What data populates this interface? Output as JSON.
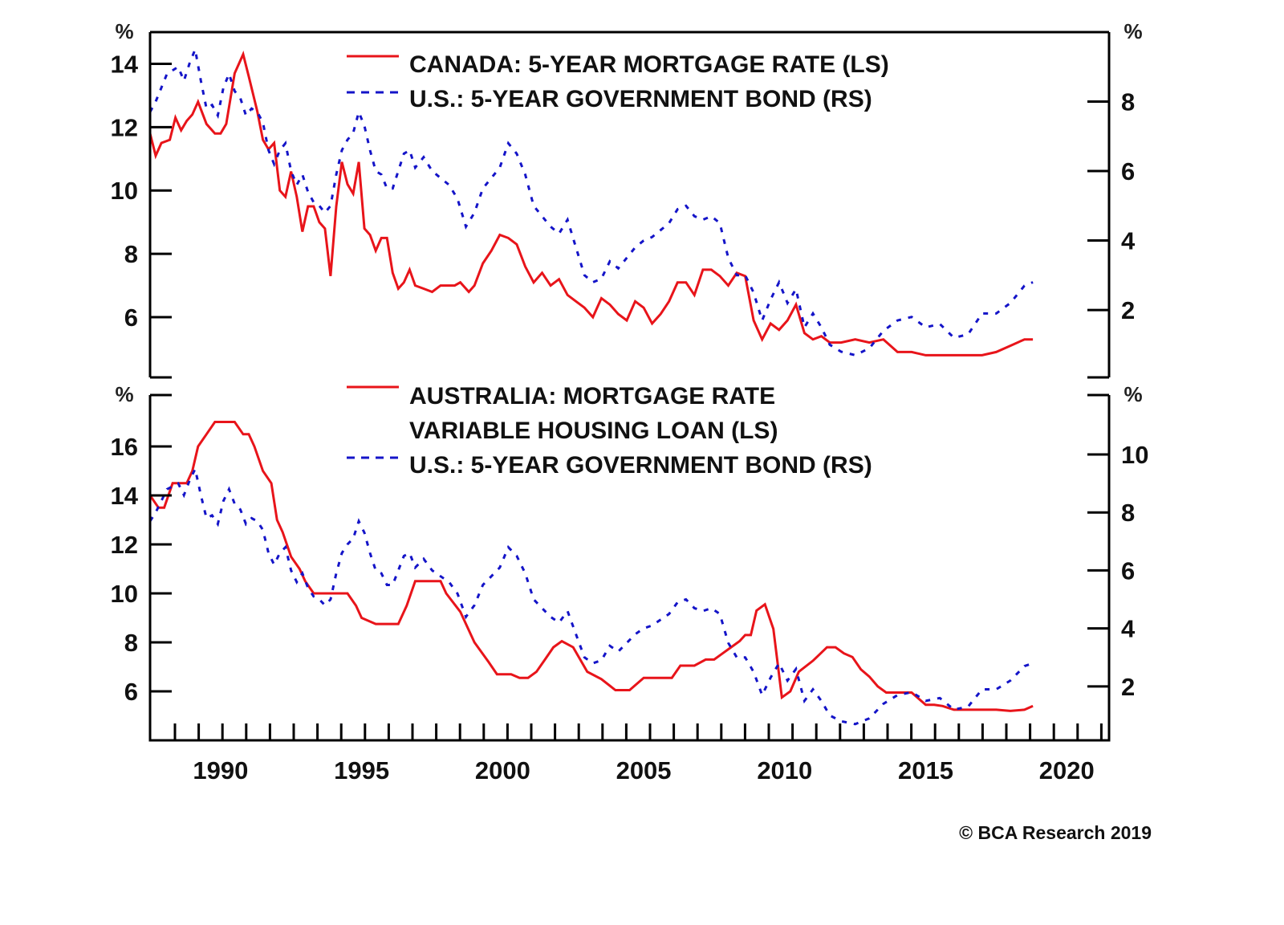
{
  "footer": {
    "credit": "© BCA Research 2019"
  },
  "colors": {
    "red_series": "#e8141a",
    "blue_series": "#1414c8",
    "axis": "#000000"
  },
  "chart_data": [
    {
      "type": "line",
      "panel": "top",
      "title": "",
      "unit_left": "%",
      "unit_right": "%",
      "xlim": [
        1987.5,
        2021.5
      ],
      "ylim_left": [
        4.1,
        15.0
      ],
      "ylim_right": [
        0.06,
        10.0
      ],
      "yticks_left": [
        6,
        8,
        10,
        12,
        14
      ],
      "yticks_right": [
        2,
        4,
        6,
        8
      ],
      "legend_placement": "top-center",
      "series": [
        {
          "name": "CANADA: 5-YEAR MORTGAGE RATE (LS)",
          "axis": "left",
          "style": "solid",
          "color": "#e8141a",
          "x": [
            1987.5,
            1987.7,
            1987.9,
            1988.2,
            1988.4,
            1988.6,
            1988.8,
            1989.0,
            1989.2,
            1989.5,
            1989.8,
            1990.0,
            1990.2,
            1990.5,
            1990.8,
            1991.0,
            1991.3,
            1991.5,
            1991.7,
            1991.9,
            1992.1,
            1992.3,
            1992.5,
            1992.7,
            1992.9,
            1993.1,
            1993.3,
            1993.5,
            1993.7,
            1993.9,
            1994.1,
            1994.3,
            1994.5,
            1994.7,
            1994.9,
            1995.1,
            1995.3,
            1995.5,
            1995.7,
            1995.9,
            1996.1,
            1996.3,
            1996.5,
            1996.7,
            1996.9,
            1997.2,
            1997.5,
            1997.8,
            1998.0,
            1998.3,
            1998.5,
            1998.8,
            1999.0,
            1999.3,
            1999.6,
            1999.9,
            2000.2,
            2000.5,
            2000.8,
            2001.1,
            2001.4,
            2001.7,
            2002.0,
            2002.3,
            2002.6,
            2002.9,
            2003.2,
            2003.5,
            2003.8,
            2004.1,
            2004.4,
            2004.7,
            2005.0,
            2005.3,
            2005.6,
            2005.9,
            2006.2,
            2006.5,
            2006.8,
            2007.1,
            2007.4,
            2007.7,
            2008.0,
            2008.3,
            2008.6,
            2008.9,
            2009.2,
            2009.5,
            2009.8,
            2010.1,
            2010.4,
            2010.7,
            2011.0,
            2011.3,
            2011.6,
            2012.0,
            2012.5,
            2013.0,
            2013.5,
            2014.0,
            2014.5,
            2015.0,
            2015.5,
            2016.0,
            2016.5,
            2017.0,
            2017.5,
            2018.0,
            2018.5,
            2018.8
          ],
          "values": [
            11.8,
            11.1,
            11.5,
            11.6,
            12.3,
            11.9,
            12.2,
            12.4,
            12.8,
            12.1,
            11.8,
            11.8,
            12.1,
            13.7,
            14.3,
            13.6,
            12.5,
            11.6,
            11.3,
            11.5,
            10.0,
            9.8,
            10.6,
            9.8,
            8.7,
            9.5,
            9.5,
            9.0,
            8.8,
            7.3,
            9.5,
            10.9,
            10.2,
            9.9,
            10.9,
            8.8,
            8.6,
            8.1,
            8.5,
            8.5,
            7.4,
            6.9,
            7.1,
            7.5,
            7.0,
            6.9,
            6.8,
            7.0,
            7.0,
            7.0,
            7.1,
            6.8,
            7.0,
            7.7,
            8.1,
            8.6,
            8.5,
            8.3,
            7.6,
            7.1,
            7.4,
            7.0,
            7.2,
            6.7,
            6.5,
            6.3,
            6.0,
            6.6,
            6.4,
            6.1,
            5.9,
            6.5,
            6.3,
            5.8,
            6.1,
            6.5,
            7.1,
            7.1,
            6.7,
            7.5,
            7.5,
            7.3,
            7.0,
            7.4,
            7.3,
            5.9,
            5.3,
            5.8,
            5.6,
            5.9,
            6.4,
            5.5,
            5.3,
            5.4,
            5.2,
            5.2,
            5.3,
            5.2,
            5.3,
            4.9,
            4.9,
            4.8,
            4.8,
            4.8,
            4.8,
            4.8,
            4.9,
            5.1,
            5.3,
            5.3
          ]
        },
        {
          "name": "U.S.: 5-YEAR GOVERNMENT BOND (RS)",
          "axis": "right",
          "style": "dashed",
          "color": "#1414c8",
          "x": [
            1987.5,
            1987.7,
            1987.9,
            1988.1,
            1988.3,
            1988.5,
            1988.7,
            1988.9,
            1989.1,
            1989.3,
            1989.5,
            1989.7,
            1989.9,
            1990.1,
            1990.3,
            1990.5,
            1990.7,
            1990.9,
            1991.1,
            1991.3,
            1991.5,
            1991.7,
            1991.9,
            1992.1,
            1992.3,
            1992.5,
            1992.7,
            1992.9,
            1993.1,
            1993.3,
            1993.5,
            1993.7,
            1993.9,
            1994.1,
            1994.3,
            1994.5,
            1994.7,
            1994.9,
            1995.1,
            1995.3,
            1995.5,
            1995.7,
            1995.9,
            1996.1,
            1996.3,
            1996.5,
            1996.7,
            1996.9,
            1997.2,
            1997.5,
            1997.8,
            1998.1,
            1998.4,
            1998.7,
            1999.0,
            1999.3,
            1999.6,
            1999.9,
            2000.2,
            2000.5,
            2000.8,
            2001.1,
            2001.4,
            2001.7,
            2002.0,
            2002.3,
            2002.6,
            2002.9,
            2003.2,
            2003.5,
            2003.8,
            2004.1,
            2004.4,
            2004.7,
            2005.0,
            2005.3,
            2005.6,
            2005.9,
            2006.2,
            2006.5,
            2006.8,
            2007.1,
            2007.4,
            2007.7,
            2008.0,
            2008.3,
            2008.6,
            2008.9,
            2009.2,
            2009.5,
            2009.8,
            2010.1,
            2010.4,
            2010.7,
            2011.0,
            2011.3,
            2011.6,
            2012.0,
            2012.5,
            2013.0,
            2013.5,
            2014.0,
            2014.5,
            2015.0,
            2015.5,
            2016.0,
            2016.5,
            2017.0,
            2017.5,
            2018.0,
            2018.5,
            2018.8
          ],
          "values": [
            7.7,
            8.0,
            8.4,
            8.8,
            8.9,
            9.0,
            8.6,
            9.1,
            9.5,
            8.6,
            7.8,
            7.9,
            7.6,
            8.4,
            8.8,
            8.3,
            8.1,
            7.6,
            7.8,
            7.7,
            7.4,
            6.6,
            6.2,
            6.6,
            6.8,
            6.0,
            5.6,
            5.9,
            5.4,
            5.1,
            5.0,
            4.8,
            5.0,
            5.9,
            6.6,
            6.9,
            7.1,
            7.7,
            7.3,
            6.6,
            6.0,
            5.9,
            5.5,
            5.5,
            6.0,
            6.5,
            6.6,
            6.1,
            6.4,
            6.0,
            5.8,
            5.6,
            5.2,
            4.4,
            4.8,
            5.5,
            5.8,
            6.1,
            6.8,
            6.5,
            5.9,
            5.0,
            4.7,
            4.4,
            4.2,
            4.6,
            3.8,
            3.0,
            2.8,
            2.9,
            3.4,
            3.2,
            3.5,
            3.8,
            4.0,
            4.1,
            4.3,
            4.5,
            4.9,
            5.0,
            4.7,
            4.6,
            4.7,
            4.5,
            3.5,
            3.0,
            3.0,
            2.5,
            1.7,
            2.3,
            2.8,
            2.2,
            2.6,
            1.5,
            1.9,
            1.5,
            1.0,
            0.8,
            0.7,
            0.9,
            1.4,
            1.7,
            1.8,
            1.5,
            1.6,
            1.2,
            1.3,
            1.9,
            1.9,
            2.2,
            2.7,
            2.8
          ]
        }
      ]
    },
    {
      "type": "line",
      "panel": "bottom",
      "title": "",
      "unit_left": "%",
      "unit_right": "%",
      "xlim": [
        1987.5,
        2021.5
      ],
      "ylim_left": [
        4.0,
        18.1
      ],
      "ylim_right": [
        0.14,
        12.05
      ],
      "yticks_left": [
        6,
        8,
        10,
        12,
        14,
        16
      ],
      "yticks_right": [
        2,
        4,
        6,
        8,
        10
      ],
      "xticks_labeled": [
        1990,
        1995,
        2000,
        2005,
        2010,
        2015,
        2020
      ],
      "legend_placement": "top-center",
      "series": [
        {
          "name": "AUSTRALIA: MORTGAGE RATE VARIABLE HOUSING LOAN (LS)",
          "legend_lines": [
            "AUSTRALIA: MORTGAGE RATE",
            "VARIABLE HOUSING LOAN (LS)"
          ],
          "axis": "left",
          "style": "solid",
          "color": "#e8141a",
          "x": [
            1987.5,
            1987.8,
            1988.0,
            1988.3,
            1988.8,
            1989.0,
            1989.2,
            1989.5,
            1989.8,
            1990.2,
            1990.5,
            1990.8,
            1991.0,
            1991.2,
            1991.5,
            1991.8,
            1992.0,
            1992.2,
            1992.5,
            1992.8,
            1993.0,
            1993.3,
            1993.5,
            1994.5,
            1994.8,
            1995.0,
            1995.5,
            1996.0,
            1996.3,
            1996.6,
            1996.9,
            1997.2,
            1997.5,
            1997.8,
            1998.0,
            1998.5,
            1999.0,
            1999.5,
            1999.8,
            2000.0,
            2000.3,
            2000.6,
            2000.9,
            2001.2,
            2001.5,
            2001.8,
            2002.1,
            2002.5,
            2003.0,
            2003.5,
            2004.0,
            2004.5,
            2005.0,
            2005.5,
            2006.0,
            2006.3,
            2006.8,
            2007.2,
            2007.5,
            2007.8,
            2008.1,
            2008.4,
            2008.6,
            2008.8,
            2009.0,
            2009.3,
            2009.6,
            2009.9,
            2010.2,
            2010.5,
            2011.0,
            2011.5,
            2011.8,
            2012.1,
            2012.4,
            2012.7,
            2013.0,
            2013.3,
            2013.6,
            2014.0,
            2014.5,
            2015.0,
            2015.3,
            2015.6,
            2016.0,
            2016.3,
            2016.7,
            2017.0,
            2017.5,
            2018.0,
            2018.5,
            2018.8
          ],
          "values": [
            14.0,
            13.5,
            13.5,
            14.5,
            14.5,
            15.0,
            16.0,
            16.5,
            17.0,
            17.0,
            17.0,
            16.5,
            16.5,
            16.0,
            15.0,
            14.5,
            13.0,
            12.5,
            11.5,
            11.0,
            10.5,
            10.0,
            10.0,
            10.0,
            9.5,
            9.0,
            8.75,
            8.75,
            8.75,
            9.5,
            10.5,
            10.5,
            10.5,
            10.5,
            10.0,
            9.25,
            8.0,
            7.2,
            6.7,
            6.7,
            6.7,
            6.55,
            6.55,
            6.8,
            7.3,
            7.8,
            8.05,
            7.8,
            6.8,
            6.5,
            6.05,
            6.05,
            6.55,
            6.55,
            6.55,
            7.05,
            7.05,
            7.3,
            7.3,
            7.55,
            7.8,
            8.05,
            8.3,
            8.3,
            9.3,
            9.55,
            8.55,
            5.75,
            6.0,
            6.8,
            7.25,
            7.8,
            7.8,
            7.55,
            7.4,
            6.9,
            6.6,
            6.2,
            5.95,
            5.95,
            5.95,
            5.45,
            5.45,
            5.4,
            5.25,
            5.25,
            5.25,
            5.25,
            5.25,
            5.2,
            5.25,
            5.4
          ]
        },
        {
          "name": "U.S.: 5-YEAR GOVERNMENT BOND (RS)",
          "axis": "right",
          "style": "dashed",
          "color": "#1414c8",
          "x": [
            1987.5,
            1987.7,
            1987.9,
            1988.1,
            1988.3,
            1988.5,
            1988.7,
            1988.9,
            1989.1,
            1989.3,
            1989.5,
            1989.7,
            1989.9,
            1990.1,
            1990.3,
            1990.5,
            1990.7,
            1990.9,
            1991.1,
            1991.3,
            1991.5,
            1991.7,
            1991.9,
            1992.1,
            1992.3,
            1992.5,
            1992.7,
            1992.9,
            1993.1,
            1993.3,
            1993.5,
            1993.7,
            1993.9,
            1994.1,
            1994.3,
            1994.5,
            1994.7,
            1994.9,
            1995.1,
            1995.3,
            1995.5,
            1995.7,
            1995.9,
            1996.1,
            1996.3,
            1996.5,
            1996.7,
            1996.9,
            1997.2,
            1997.5,
            1997.8,
            1998.1,
            1998.4,
            1998.7,
            1999.0,
            1999.3,
            1999.6,
            1999.9,
            2000.2,
            2000.5,
            2000.8,
            2001.1,
            2001.4,
            2001.7,
            2002.0,
            2002.3,
            2002.6,
            2002.9,
            2003.2,
            2003.5,
            2003.8,
            2004.1,
            2004.4,
            2004.7,
            2005.0,
            2005.3,
            2005.6,
            2005.9,
            2006.2,
            2006.5,
            2006.8,
            2007.1,
            2007.4,
            2007.7,
            2008.0,
            2008.3,
            2008.6,
            2008.9,
            2009.2,
            2009.5,
            2009.8,
            2010.1,
            2010.4,
            2010.7,
            2011.0,
            2011.3,
            2011.6,
            2012.0,
            2012.5,
            2013.0,
            2013.5,
            2014.0,
            2014.5,
            2015.0,
            2015.5,
            2016.0,
            2016.5,
            2017.0,
            2017.5,
            2018.0,
            2018.5,
            2018.8
          ],
          "values": [
            7.7,
            8.0,
            8.4,
            8.8,
            8.9,
            9.0,
            8.6,
            9.1,
            9.5,
            8.6,
            7.8,
            7.9,
            7.6,
            8.4,
            8.8,
            8.3,
            8.1,
            7.6,
            7.8,
            7.7,
            7.4,
            6.6,
            6.2,
            6.6,
            6.8,
            6.0,
            5.6,
            5.9,
            5.4,
            5.1,
            5.0,
            4.8,
            5.0,
            5.9,
            6.6,
            6.9,
            7.1,
            7.7,
            7.3,
            6.6,
            6.0,
            5.9,
            5.5,
            5.5,
            6.0,
            6.5,
            6.6,
            6.1,
            6.4,
            6.0,
            5.8,
            5.6,
            5.2,
            4.4,
            4.8,
            5.5,
            5.8,
            6.1,
            6.8,
            6.5,
            5.9,
            5.0,
            4.7,
            4.4,
            4.2,
            4.6,
            3.8,
            3.0,
            2.8,
            2.9,
            3.4,
            3.2,
            3.5,
            3.8,
            4.0,
            4.1,
            4.3,
            4.5,
            4.9,
            5.0,
            4.7,
            4.6,
            4.7,
            4.5,
            3.5,
            3.0,
            3.0,
            2.5,
            1.7,
            2.3,
            2.8,
            2.2,
            2.6,
            1.5,
            1.9,
            1.5,
            1.0,
            0.8,
            0.7,
            0.9,
            1.4,
            1.7,
            1.8,
            1.5,
            1.6,
            1.2,
            1.3,
            1.9,
            1.9,
            2.2,
            2.7,
            2.8
          ]
        }
      ]
    }
  ]
}
